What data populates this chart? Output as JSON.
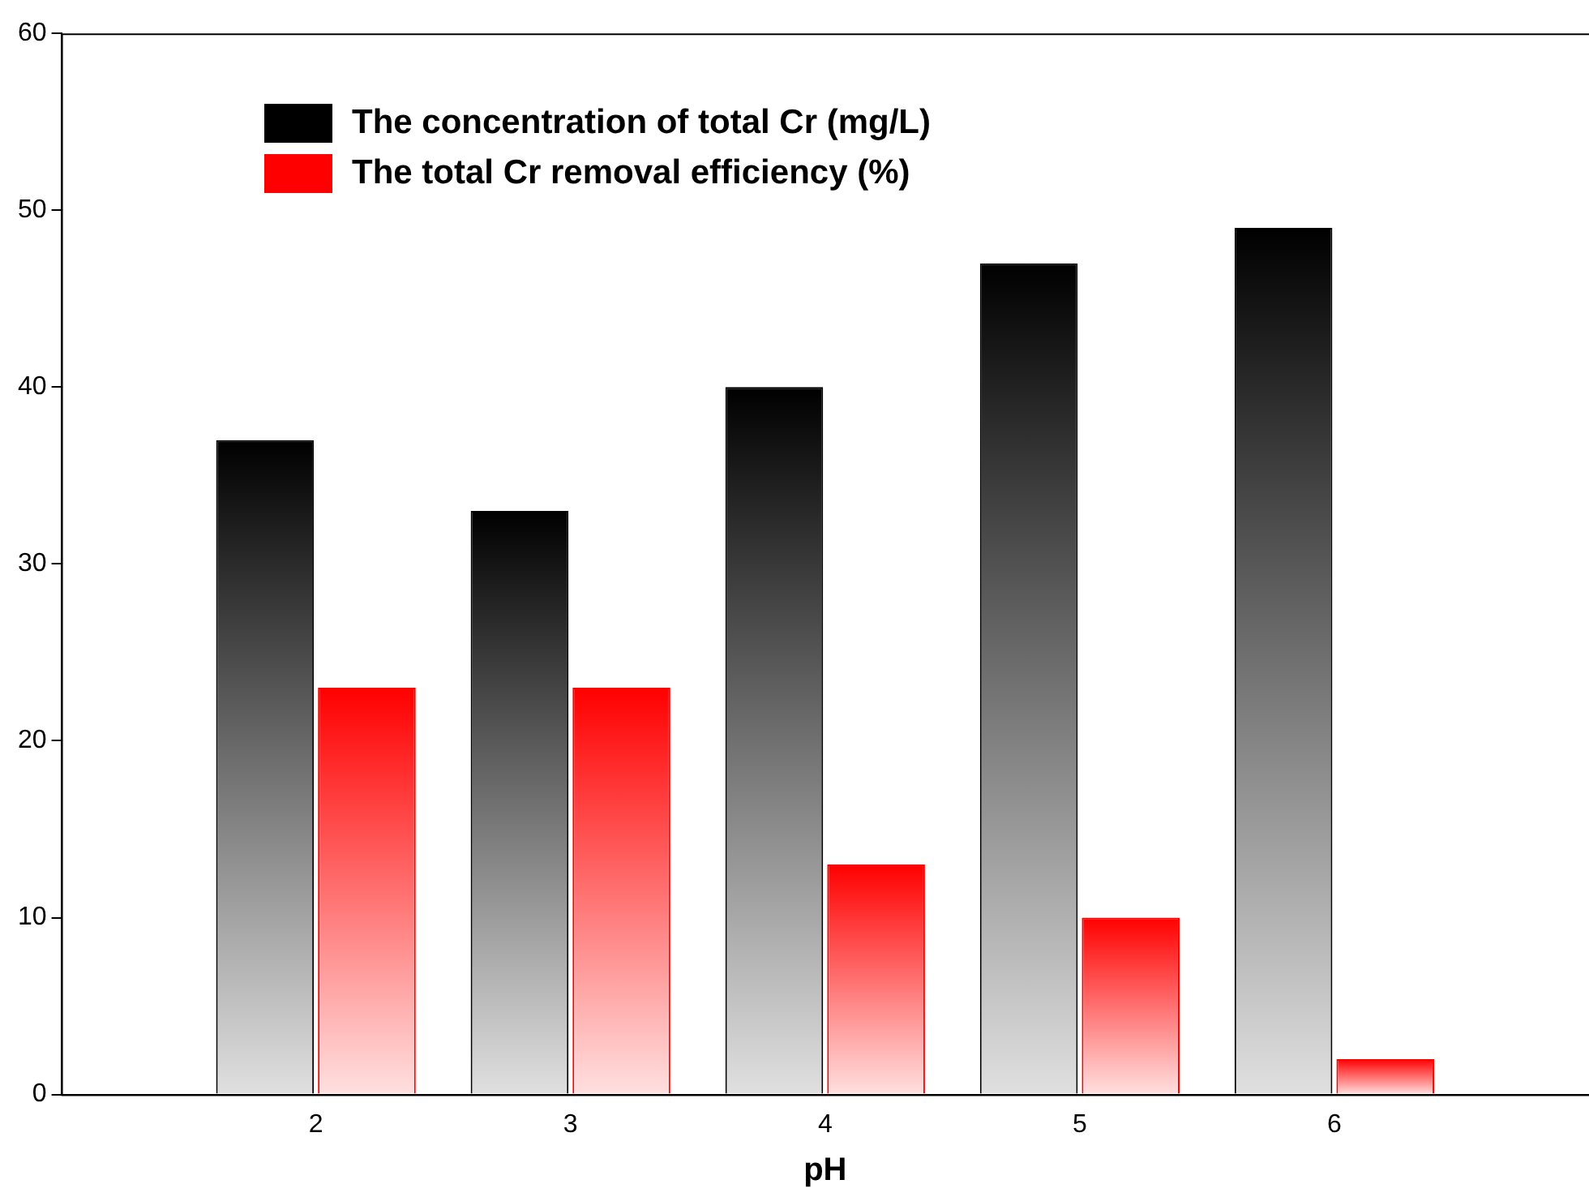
{
  "chart_data": {
    "type": "bar",
    "xlabel": "pH",
    "categories": [
      "2",
      "3",
      "4",
      "5",
      "6"
    ],
    "series": [
      {
        "name": "The concentration of total Cr (mg/L)",
        "color": "#000000",
        "values": [
          37,
          33,
          40,
          47,
          49
        ]
      },
      {
        "name": "The total Cr removal efficiency (%)",
        "color": "#ff0000",
        "values": [
          23,
          23,
          13,
          10,
          2
        ]
      }
    ],
    "ylim": [
      0,
      60
    ],
    "yticks": [
      0,
      10,
      20,
      30,
      40,
      50,
      60
    ],
    "grid": false,
    "legend": "top left"
  }
}
